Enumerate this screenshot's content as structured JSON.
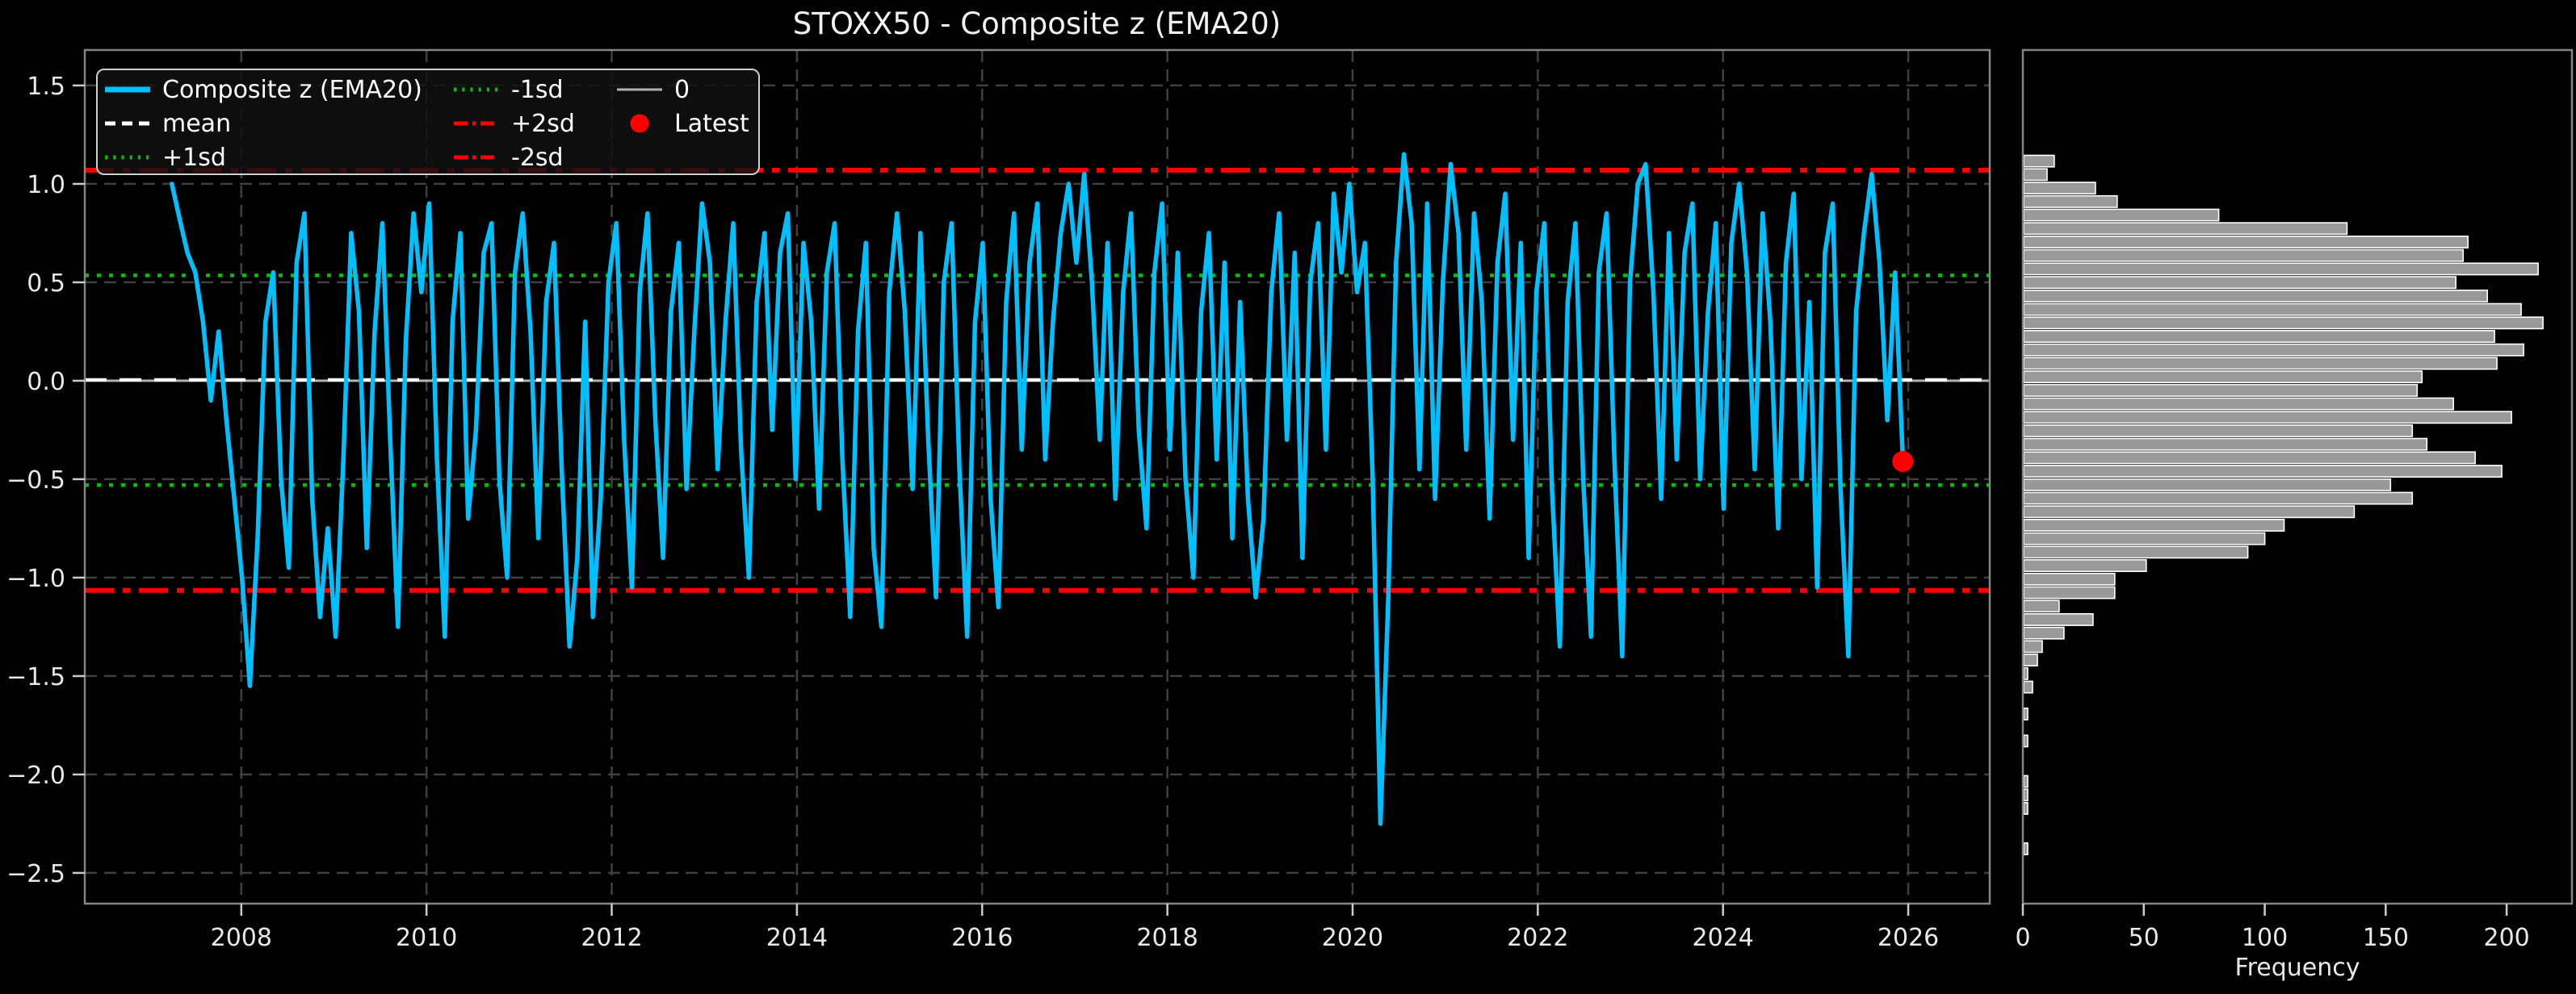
{
  "title": "STOXX50 - Composite z (EMA20)",
  "colors": {
    "background": "#000000",
    "line": "#00BFFF",
    "mean": "#ffffff",
    "sd1": "#00C000",
    "sd2": "#FF0000",
    "zero": "#b3b3b3",
    "latest": "#FF0000",
    "grid": "#3f3f3f",
    "spine": "#848484",
    "tick": "#cccccc",
    "text": "#e8e8e8",
    "bar_fill": "#999999",
    "bar_edge": "#ffffff"
  },
  "legend": {
    "items": [
      {
        "label": "Composite z (EMA20)",
        "marker": "line",
        "dash": "solid",
        "color": "#00BFFF",
        "lw": 7
      },
      {
        "label": "mean",
        "marker": "line",
        "dash": "dashed",
        "color": "#ffffff",
        "lw": 5
      },
      {
        "label": "+1sd",
        "marker": "line",
        "dash": "dotted",
        "color": "#00C000",
        "lw": 5
      },
      {
        "label": "-1sd",
        "marker": "line",
        "dash": "dotted",
        "color": "#00C000",
        "lw": 5
      },
      {
        "label": "+2sd",
        "marker": "line",
        "dash": "dashdot",
        "color": "#FF0000",
        "lw": 5
      },
      {
        "label": "-2sd",
        "marker": "line",
        "dash": "dashdot",
        "color": "#FF0000",
        "lw": 5
      },
      {
        "label": "0",
        "marker": "line",
        "dash": "solid",
        "color": "#b3b3b3",
        "lw": 3
      },
      {
        "label": "Latest",
        "marker": "dot",
        "dash": "solid",
        "color": "#FF0000",
        "lw": 0
      }
    ]
  },
  "chart_data": [
    {
      "type": "line",
      "title": "STOXX50 - Composite z (EMA20)",
      "xlabel": "",
      "ylabel": "",
      "grid": true,
      "legend_position": "upper left",
      "xlim": [
        2006.31,
        2026.88
      ],
      "ylim": [
        -2.656,
        1.68
      ],
      "xticks": [
        2008,
        2010,
        2012,
        2014,
        2016,
        2018,
        2020,
        2022,
        2024,
        2026
      ],
      "ytick_values": [
        1.5,
        1.0,
        0.5,
        0.0,
        -0.5,
        -1.0,
        -1.5,
        -2.0,
        -2.5
      ],
      "ytick_labels": [
        "1.5",
        "1.0",
        "0.5",
        "0.0",
        "−0.5",
        "−1.0",
        "−1.5",
        "−2.0",
        "−2.5"
      ],
      "ref_lines": {
        "mean": 0.005,
        "plus1sd": 0.535,
        "minus1sd": -0.53,
        "plus2sd": 1.07,
        "minus2sd": -1.065,
        "zero": 0.0
      },
      "latest": {
        "x": 2025.94,
        "value": -0.41
      },
      "series": [
        {
          "name": "Composite z (EMA20)",
          "x_start": 2007.25,
          "x_step_years": 0.0842,
          "values": [
            1.0,
            0.82,
            0.65,
            0.55,
            0.3,
            -0.1,
            0.25,
            -0.2,
            -0.6,
            -1.0,
            -1.55,
            -0.8,
            0.3,
            0.55,
            -0.5,
            -0.95,
            0.6,
            0.85,
            -0.6,
            -1.2,
            -0.75,
            -1.3,
            -0.4,
            0.75,
            0.35,
            -0.85,
            0.25,
            0.8,
            -0.3,
            -1.25,
            0.2,
            0.85,
            0.45,
            0.9,
            -0.4,
            -1.3,
            0.3,
            0.75,
            -0.7,
            -0.25,
            0.65,
            0.8,
            -0.5,
            -1.0,
            0.55,
            0.85,
            0.25,
            -0.8,
            0.4,
            0.7,
            -0.45,
            -1.35,
            -0.9,
            0.3,
            -1.2,
            -0.6,
            0.5,
            0.8,
            -0.3,
            -1.05,
            0.45,
            0.85,
            -0.2,
            -0.9,
            0.35,
            0.7,
            -0.55,
            0.25,
            0.9,
            0.6,
            -0.45,
            0.3,
            0.8,
            -0.35,
            -1.0,
            0.4,
            0.75,
            -0.25,
            0.65,
            0.85,
            -0.5,
            0.7,
            0.3,
            -0.65,
            0.55,
            0.8,
            -0.4,
            -1.2,
            0.25,
            0.7,
            -0.85,
            -1.25,
            0.45,
            0.85,
            0.35,
            -0.55,
            0.75,
            -0.3,
            -1.1,
            0.5,
            0.8,
            -0.45,
            -1.3,
            0.3,
            0.7,
            -0.6,
            -1.15,
            0.4,
            0.85,
            -0.35,
            0.6,
            0.9,
            -0.4,
            0.3,
            0.75,
            1.0,
            0.6,
            1.05,
            0.5,
            -0.3,
            0.7,
            -0.6,
            0.45,
            0.85,
            -0.25,
            -0.75,
            0.55,
            0.9,
            -0.35,
            0.65,
            -0.5,
            -1.0,
            0.35,
            0.75,
            -0.4,
            0.6,
            -0.8,
            0.4,
            -0.6,
            -1.1,
            -0.7,
            0.45,
            0.85,
            -0.3,
            0.65,
            -0.9,
            0.5,
            0.8,
            -0.35,
            0.95,
            0.55,
            1.0,
            0.45,
            0.7,
            -0.5,
            -2.25,
            -1.1,
            0.6,
            1.15,
            0.8,
            -0.45,
            0.9,
            -0.6,
            0.5,
            1.1,
            0.75,
            -0.35,
            0.85,
            0.4,
            -0.7,
            0.6,
            0.95,
            -0.3,
            0.7,
            -0.9,
            0.45,
            0.8,
            -0.55,
            -1.35,
            0.4,
            0.8,
            -0.5,
            -1.3,
            0.55,
            0.85,
            -0.4,
            -1.4,
            0.5,
            1.0,
            1.1,
            0.45,
            -0.6,
            0.75,
            -0.4,
            0.65,
            0.9,
            -0.5,
            0.35,
            0.8,
            -0.65,
            0.7,
            1.0,
            0.55,
            -0.45,
            0.85,
            0.3,
            -0.75,
            0.6,
            0.95,
            -0.5,
            0.4,
            -1.05,
            0.65,
            0.9,
            -0.55,
            -1.4,
            0.35,
            0.75,
            1.05,
            0.6,
            -0.2,
            0.55,
            -0.41
          ]
        }
      ]
    },
    {
      "type": "bar",
      "orientation": "horizontal",
      "xlabel": "Frequency",
      "ylabel": "",
      "grid": false,
      "xlim": [
        0,
        227
      ],
      "xticks": [
        0,
        50,
        100,
        150,
        200
      ],
      "bins_top": 1.15,
      "bin_step": 0.0685,
      "counts": [
        13,
        10,
        30,
        39,
        81,
        134,
        184,
        182,
        213,
        179,
        192,
        206,
        215,
        195,
        207,
        196,
        165,
        163,
        178,
        202,
        161,
        167,
        187,
        198,
        152,
        161,
        137,
        108,
        100,
        93,
        51,
        38,
        38,
        15,
        29,
        17,
        8,
        6,
        2,
        4,
        0,
        2,
        0,
        2,
        0,
        0,
        2,
        2,
        2,
        0,
        0,
        2
      ]
    }
  ]
}
